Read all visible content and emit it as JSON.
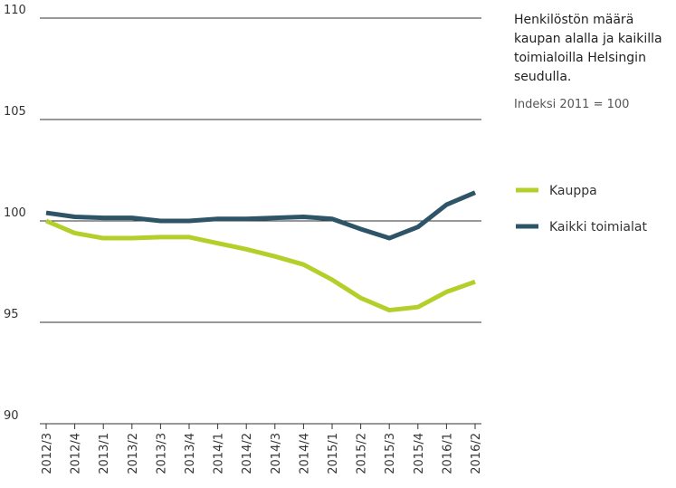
{
  "chart_data": {
    "type": "line",
    "title": "Henkilöstön määrä kaupan alalla ja kaikilla toimialoilla Helsingin seudulla.",
    "subtitle": "Indeksi 2011 = 100",
    "categories": [
      "2012/3",
      "2012/4",
      "2013/1",
      "2013/2",
      "2013/3",
      "2013/4",
      "2014/1",
      "2014/2",
      "2014/3",
      "2014/4",
      "2015/1",
      "2015/2",
      "2015/3",
      "2015/4",
      "2016/1",
      "2016/2"
    ],
    "series": [
      {
        "name": "Kauppa",
        "color": "#b5cf2a",
        "values": [
          100.0,
          99.4,
          99.15,
          99.15,
          99.2,
          99.2,
          98.9,
          98.6,
          98.25,
          97.85,
          97.1,
          96.2,
          95.6,
          95.75,
          96.5,
          97.0
        ]
      },
      {
        "name": "Kaikki toimialat",
        "color": "#2e5468",
        "values": [
          100.4,
          100.2,
          100.15,
          100.15,
          100.0,
          100.0,
          100.1,
          100.1,
          100.15,
          100.2,
          100.1,
          99.6,
          99.15,
          99.7,
          100.8,
          101.4
        ]
      }
    ],
    "ylim": [
      90,
      110
    ],
    "yticks": [
      90,
      95,
      100,
      105,
      110
    ],
    "grid": true
  }
}
